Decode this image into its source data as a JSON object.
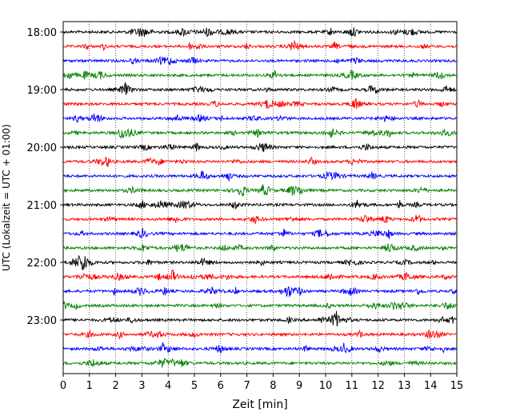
{
  "chart_data": {
    "type": "line",
    "title": "",
    "xlabel": "Zeit  [min]",
    "ylabel": "UTC (Lokalzeit = UTC + 01:00)",
    "xlim": [
      0,
      15
    ],
    "x_ticks": [
      "0",
      "1",
      "2",
      "3",
      "4",
      "5",
      "6",
      "7",
      "8",
      "9",
      "10",
      "11",
      "12",
      "13",
      "14",
      "15"
    ],
    "y_ticks": [
      "18:00",
      "19:00",
      "20:00",
      "21:00",
      "22:00",
      "23:00"
    ],
    "grid": "vertical dotted",
    "trace_colors": [
      "#000000",
      "#ff0000",
      "#0000ff",
      "#008000"
    ],
    "traces": [
      {
        "start": "18:00",
        "color": "#000000"
      },
      {
        "start": "18:15",
        "color": "#ff0000"
      },
      {
        "start": "18:30",
        "color": "#0000ff"
      },
      {
        "start": "18:45",
        "color": "#008000"
      },
      {
        "start": "19:00",
        "color": "#000000"
      },
      {
        "start": "19:15",
        "color": "#ff0000"
      },
      {
        "start": "19:30",
        "color": "#0000ff"
      },
      {
        "start": "19:45",
        "color": "#008000"
      },
      {
        "start": "20:00",
        "color": "#000000"
      },
      {
        "start": "20:15",
        "color": "#ff0000"
      },
      {
        "start": "20:30",
        "color": "#0000ff"
      },
      {
        "start": "20:45",
        "color": "#008000"
      },
      {
        "start": "21:00",
        "color": "#000000"
      },
      {
        "start": "21:15",
        "color": "#ff0000"
      },
      {
        "start": "21:30",
        "color": "#0000ff"
      },
      {
        "start": "21:45",
        "color": "#008000"
      },
      {
        "start": "22:00",
        "color": "#000000"
      },
      {
        "start": "22:15",
        "color": "#ff0000"
      },
      {
        "start": "22:30",
        "color": "#0000ff"
      },
      {
        "start": "22:45",
        "color": "#008000"
      },
      {
        "start": "23:00",
        "color": "#000000"
      },
      {
        "start": "23:15",
        "color": "#ff0000"
      },
      {
        "start": "23:30",
        "color": "#0000ff"
      },
      {
        "start": "23:45",
        "color": "#008000"
      }
    ]
  }
}
